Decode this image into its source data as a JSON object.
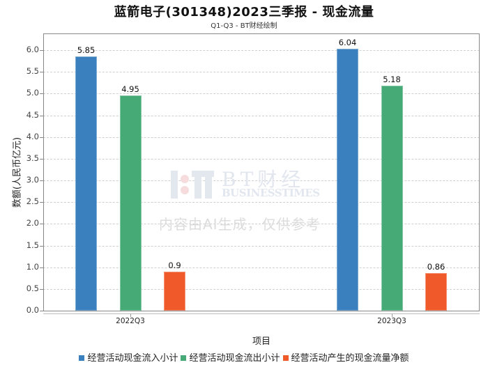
{
  "chart_data": {
    "type": "bar",
    "title": "蓝箭电子(301348)2023三季报 - 现金流量",
    "subtitle": "Q1-Q3 - BT财经绘制",
    "xlabel": "项目",
    "ylabel": "数额(人民币亿元)",
    "categories": [
      "2022Q3",
      "2023Q3"
    ],
    "series": [
      {
        "name": "经营活动现金流入小计",
        "color": "#3a80be",
        "values": [
          5.85,
          6.04
        ],
        "labels": [
          "5.85",
          "6.04"
        ]
      },
      {
        "name": "经营活动现金流出小计",
        "color": "#46aa77",
        "values": [
          4.95,
          5.18
        ],
        "labels": [
          "4.95",
          "5.18"
        ]
      },
      {
        "name": "经营活动产生的现金流量净额",
        "color": "#f05a2a",
        "values": [
          0.9,
          0.86
        ],
        "labels": [
          "0.9",
          "0.86"
        ]
      }
    ],
    "ylim": [
      0,
      6.0
    ],
    "yticks": [
      "0.0",
      "0.5",
      "1.0",
      "1.5",
      "2.0",
      "2.5",
      "3.0",
      "3.5",
      "4.0",
      "4.5",
      "5.0",
      "5.5",
      "6.0"
    ],
    "grid": true,
    "legend_position": "bottom"
  },
  "watermark": {
    "brand": "BT财经",
    "brand_en": "BUSINESSTIMES",
    "notice": "内容由AI生成，仅供参考"
  }
}
